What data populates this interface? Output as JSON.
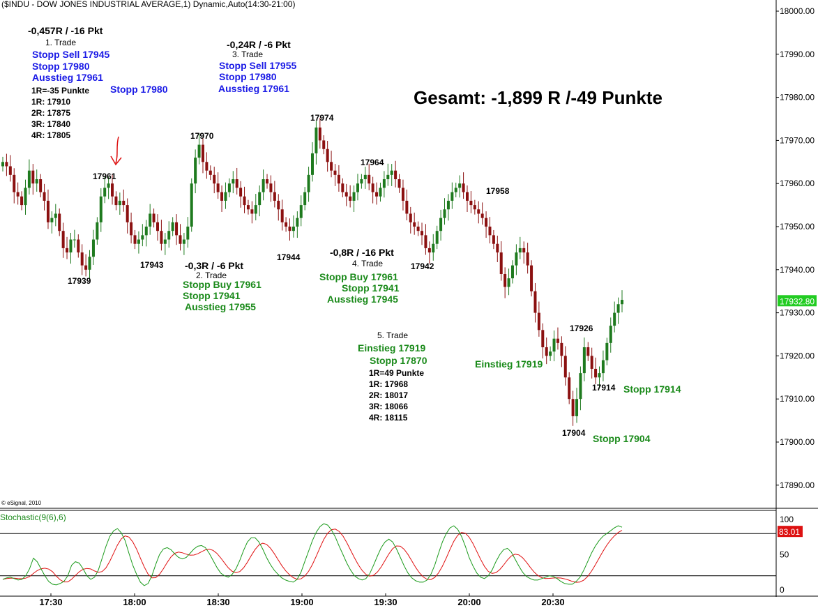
{
  "chart_title": "($INDU - DOW JONES INDUSTRIAL AVERAGE,1) Dynamic,Auto(14:30-21:00)",
  "copyright": "© eSignal, 2010",
  "colors": {
    "up": "#1e7a1e",
    "down": "#8b1010",
    "stoch_k": "#1a9a1a",
    "stoch_d": "#e01010",
    "last_price_bg": "#22cc22",
    "stoch_badge_bg": "#dd1111",
    "arrow": "#dd1111"
  },
  "chart_data": [
    {
      "type": "candlestick",
      "title": "($INDU - DOW JONES INDUSTRIAL AVERAGE,1) Dynamic,Auto(14:30-21:00)",
      "x_ticks": [
        "17:30",
        "18:00",
        "18:30",
        "19:00",
        "19:30",
        "20:00",
        "20:30"
      ],
      "y_ticks": [
        "18000.00",
        "17990.00",
        "17980.00",
        "17970.00",
        "17960.00",
        "17950.00",
        "17940.00",
        "17930.00",
        "17920.00",
        "17910.00",
        "17900.00",
        "17890.00"
      ],
      "ylim": [
        17885,
        18002
      ],
      "last_price": "17932.80",
      "close_series": [
        17965,
        17964,
        17962,
        17958,
        17957,
        17955,
        17959,
        17963,
        17960,
        17961,
        17958,
        17956,
        17951,
        17952,
        17953,
        17949,
        17945,
        17944,
        17947,
        17947,
        17944,
        17941,
        17940,
        17943,
        17947,
        17951,
        17957,
        17959,
        17960,
        17957,
        17955,
        17956,
        17955,
        17951,
        17948,
        17946,
        17947,
        17948,
        17950,
        17953,
        17951,
        17949,
        17946,
        17947,
        17949,
        17951,
        17948,
        17946,
        17947,
        17950,
        17960,
        17966,
        17969,
        17965,
        17963,
        17962,
        17960,
        17958,
        17956,
        17958,
        17960,
        17961,
        17959,
        17957,
        17955,
        17954,
        17953,
        17955,
        17958,
        17961,
        17960,
        17958,
        17956,
        17954,
        17951,
        17950,
        17949,
        17950,
        17952,
        17955,
        17958,
        17962,
        17967,
        17973,
        17970,
        17968,
        17965,
        17963,
        17962,
        17960,
        17958,
        17957,
        17956,
        17958,
        17960,
        17961,
        17962,
        17960,
        17958,
        17957,
        17959,
        17961,
        17962,
        17963,
        17961,
        17959,
        17956,
        17953,
        17951,
        17950,
        17949,
        17948,
        17945,
        17944,
        17946,
        17949,
        17952,
        17954,
        17956,
        17958,
        17959,
        17960,
        17958,
        17956,
        17955,
        17954,
        17953,
        17952,
        17950,
        17948,
        17946,
        17944,
        17939,
        17936,
        17938,
        17941,
        17944,
        17945,
        17944,
        17941,
        17935,
        17930,
        17926,
        17922,
        17920,
        17921,
        17924,
        17923,
        17920,
        17915,
        17910,
        17906,
        17910,
        17916,
        17922,
        17920,
        17917,
        17915,
        17916,
        17919,
        17923,
        17927,
        17930,
        17932,
        17933
      ],
      "indicator": {
        "name": "Stochastic(9(6),6)",
        "levels": [
          80,
          20
        ],
        "y_ticks": [
          "100",
          "50",
          "0"
        ],
        "value_badge": "83.01",
        "k_series": [
          15,
          17,
          18,
          16,
          14,
          15,
          20,
          30,
          45,
          40,
          30,
          20,
          12,
          8,
          7,
          9,
          12,
          20,
          35,
          40,
          38,
          30,
          20,
          15,
          18,
          28,
          45,
          62,
          76,
          84,
          87,
          81,
          70,
          52,
          35,
          22,
          11,
          6,
          9,
          20,
          36,
          50,
          58,
          60,
          57,
          51,
          46,
          44,
          46,
          52,
          58,
          62,
          63,
          60,
          52,
          42,
          32,
          24,
          20,
          18,
          22,
          30,
          42,
          56,
          68,
          74,
          74,
          68,
          58,
          46,
          36,
          28,
          22,
          17,
          14,
          12,
          11,
          15,
          25,
          40,
          55,
          70,
          82,
          90,
          94,
          92,
          85,
          75,
          62,
          50,
          38,
          28,
          20,
          16,
          14,
          16,
          23,
          35,
          48,
          60,
          68,
          72,
          68,
          58,
          46,
          34,
          24,
          17,
          13,
          11,
          11,
          14,
          22,
          35,
          52,
          68,
          80,
          88,
          91,
          86,
          76,
          62,
          46,
          34,
          24,
          18,
          16,
          20,
          28,
          40,
          50,
          57,
          59,
          54,
          44,
          34,
          25,
          19,
          16,
          14,
          14,
          16,
          18,
          20,
          19,
          16,
          12,
          9,
          8,
          8,
          12,
          18,
          28,
          40,
          52,
          62,
          70,
          76,
          80,
          84,
          88,
          91,
          89
        ]
      }
    }
  ],
  "annotations": {
    "t1_result": "-0,457R / -16 Pkt",
    "t1_title": "1. Trade",
    "t1_stopp_sell": "Stopp Sell 17945",
    "t1_stopp": "Stopp 17980",
    "t1_ausstieg": "Ausstieg 17961",
    "t1_r_def": "1R=-35 Punkte",
    "t1_1r": "1R: 17910",
    "t1_2r": "2R: 17875",
    "t1_3r": "3R: 17840",
    "t1_4r": "4R: 17805",
    "t1_stopp2": "Stopp 17980",
    "t3_result": "-0,24R / -6 Pkt",
    "t3_title": "3. Trade",
    "t3_stopp_sell": "Stopp Sell 17955",
    "t3_stopp": "Stopp 17980",
    "t3_ausstieg": "Ausstieg 17961",
    "gesamt": "Gesamt: -1,899 R /-49 Punkte",
    "p17970": "17970",
    "p17974": "17974",
    "p17964": "17964",
    "p17961": "17961",
    "p17958": "17958",
    "p17939": "17939",
    "p17943": "17943",
    "p17944": "17944",
    "p17942": "17942",
    "p17926": "17926",
    "p17914": "17914",
    "p17904": "17904",
    "t2_result": "-0,3R / -6 Pkt",
    "t2_title": "2. Trade",
    "t2_stopp_buy": "Stopp Buy 17961",
    "t2_stopp": "Stopp 17941",
    "t2_ausstieg": "Ausstieg 17955",
    "t4_result": "-0,8R / -16 Pkt",
    "t4_title": "4. Trade",
    "t4_stopp_buy": "Stopp Buy 17961",
    "t4_stopp": "Stopp 17941",
    "t4_ausstieg": "Ausstieg 17945",
    "t5_title": "5. Trade",
    "t5_einstieg": "Einstieg 17919",
    "t5_stopp": "Stopp 17870",
    "t5_r_def": "1R=49 Punkte",
    "t5_1r": "1R: 17968",
    "t5_2r": "2R: 18017",
    "t5_3r": "3R: 18066",
    "t5_4r": "4R: 18115",
    "einstieg2": "Einstieg 17919",
    "stopp_17914": "Stopp 17914",
    "stopp_17904": "Stopp 17904"
  }
}
